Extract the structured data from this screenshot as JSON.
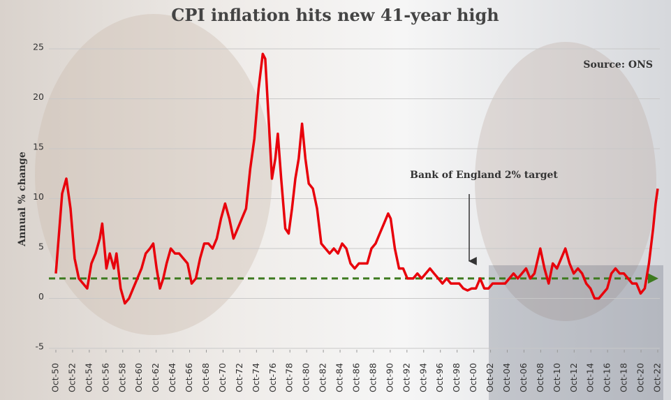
{
  "chart_data": {
    "type": "line",
    "title": "CPI inflation hits new 41-year high",
    "source": "Source: ONS",
    "y_label": "Annual % change",
    "annotation": "Bank of England 2% target",
    "target": 2,
    "target_color": "#3d7a1f",
    "color": "#e8000b",
    "grid": true,
    "xlim": [
      1950.75,
      2022.75
    ],
    "ylim": [
      -5,
      25
    ],
    "yticks": [
      -5,
      0,
      5,
      10,
      15,
      20,
      25
    ],
    "xticks": [
      {
        "value": 1950.75,
        "label": "Oct-50"
      },
      {
        "value": 1952.75,
        "label": "Oct-52"
      },
      {
        "value": 1954.75,
        "label": "Oct-54"
      },
      {
        "value": 1956.75,
        "label": "Oct-56"
      },
      {
        "value": 1958.75,
        "label": "Oct-58"
      },
      {
        "value": 1960.75,
        "label": "Oct-60"
      },
      {
        "value": 1962.75,
        "label": "Oct-62"
      },
      {
        "value": 1964.75,
        "label": "Oct-64"
      },
      {
        "value": 1966.75,
        "label": "Oct-66"
      },
      {
        "value": 1968.75,
        "label": "Oct-68"
      },
      {
        "value": 1970.75,
        "label": "Oct-70"
      },
      {
        "value": 1972.75,
        "label": "Oct-72"
      },
      {
        "value": 1974.75,
        "label": "Oct-74"
      },
      {
        "value": 1976.75,
        "label": "Oct-76"
      },
      {
        "value": 1978.75,
        "label": "Oct-78"
      },
      {
        "value": 1980.75,
        "label": "Oct-80"
      },
      {
        "value": 1982.75,
        "label": "Oct-82"
      },
      {
        "value": 1984.75,
        "label": "Oct-84"
      },
      {
        "value": 1986.75,
        "label": "Oct-86"
      },
      {
        "value": 1988.75,
        "label": "Oct-88"
      },
      {
        "value": 1990.75,
        "label": "Oct-90"
      },
      {
        "value": 1992.75,
        "label": "Oct-92"
      },
      {
        "value": 1994.75,
        "label": "Oct-94"
      },
      {
        "value": 1996.75,
        "label": "Oct-96"
      },
      {
        "value": 1998.75,
        "label": "Oct-98"
      },
      {
        "value": 2000.75,
        "label": "Oct-00"
      },
      {
        "value": 2002.75,
        "label": "Oct-02"
      },
      {
        "value": 2004.75,
        "label": "Oct-04"
      },
      {
        "value": 2006.75,
        "label": "Oct-06"
      },
      {
        "value": 2008.75,
        "label": "Oct-08"
      },
      {
        "value": 2010.75,
        "label": "Oct-10"
      },
      {
        "value": 2012.75,
        "label": "Oct-12"
      },
      {
        "value": 2014.75,
        "label": "Oct-14"
      },
      {
        "value": 2016.75,
        "label": "Oct-16"
      },
      {
        "value": 2018.75,
        "label": "Oct-18"
      },
      {
        "value": 2020.75,
        "label": "Oct-20"
      },
      {
        "value": 2022.75,
        "label": "Oct-22"
      }
    ],
    "x": [
      1950.75,
      1951.5,
      1952,
      1952.5,
      1953,
      1953.5,
      1954,
      1954.5,
      1955,
      1955.5,
      1956,
      1956.3,
      1956.8,
      1957.2,
      1957.7,
      1958,
      1958.5,
      1959,
      1959.5,
      1960,
      1960.5,
      1961,
      1961.5,
      1962,
      1962.4,
      1962.8,
      1963.2,
      1963.6,
      1964,
      1964.5,
      1965,
      1965.5,
      1966,
      1966.5,
      1967,
      1967.5,
      1968,
      1968.5,
      1969,
      1969.5,
      1970,
      1970.5,
      1971,
      1971.5,
      1972,
      1972.5,
      1973,
      1973.5,
      1974,
      1974.5,
      1975,
      1975.5,
      1975.8,
      1976.2,
      1976.6,
      1977,
      1977.3,
      1977.7,
      1978.2,
      1978.6,
      1979,
      1979.4,
      1979.8,
      1980.2,
      1980.6,
      1981,
      1981.5,
      1982,
      1982.5,
      1983,
      1983.5,
      1984,
      1984.5,
      1985,
      1985.5,
      1986,
      1986.5,
      1987,
      1987.5,
      1988,
      1988.5,
      1989,
      1989.5,
      1990,
      1990.5,
      1990.8,
      1991.3,
      1991.8,
      1992.3,
      1992.8,
      1993.5,
      1994,
      1994.5,
      1995,
      1995.5,
      1996,
      1996.5,
      1997,
      1997.5,
      1998,
      1998.5,
      1999,
      1999.5,
      2000,
      2000.5,
      2001,
      2001.5,
      2002,
      2002.5,
      2003,
      2003.5,
      2004,
      2004.5,
      2005,
      2005.5,
      2006,
      2006.5,
      2007,
      2007.5,
      2008,
      2008.7,
      2009.2,
      2009.7,
      2010.2,
      2010.7,
      2011.2,
      2011.7,
      2012.2,
      2012.7,
      2013.2,
      2013.7,
      2014.2,
      2014.7,
      2015.2,
      2015.7,
      2016.2,
      2016.7,
      2017.2,
      2017.7,
      2018.2,
      2018.7,
      2019.2,
      2019.7,
      2020.2,
      2020.7,
      2021.2,
      2021.7,
      2022.2,
      2022.5,
      2022.75
    ],
    "values": [
      2.5,
      10.5,
      12,
      9,
      4,
      2,
      1.5,
      1,
      3.5,
      4.5,
      6,
      7.5,
      3,
      4.5,
      3,
      4.5,
      1,
      -0.5,
      0,
      1,
      2,
      3,
      4.5,
      5,
      5.5,
      3,
      1,
      2,
      3.5,
      5,
      4.5,
      4.5,
      4,
      3.5,
      1.5,
      2,
      4,
      5.5,
      5.5,
      5,
      6,
      8,
      9.5,
      8,
      6,
      7,
      8,
      9,
      13,
      16,
      21,
      24.5,
      24,
      18,
      12,
      14,
      16.5,
      12,
      7,
      6.5,
      9,
      12,
      14,
      17.5,
      14,
      11.5,
      11,
      9,
      5.5,
      5,
      4.5,
      5,
      4.5,
      5.5,
      5,
      3.5,
      3,
      3.5,
      3.5,
      3.5,
      5,
      5.5,
      6.5,
      7.5,
      8.5,
      8,
      5,
      3,
      3,
      2,
      2,
      2.5,
      2,
      2.5,
      3,
      2.5,
      2,
      1.5,
      2,
      1.5,
      1.5,
      1.5,
      1,
      0.8,
      1,
      1,
      2,
      1,
      1,
      1.5,
      1.5,
      1.5,
      1.5,
      2,
      2.5,
      2,
      2.5,
      3,
      2,
      2.5,
      5,
      3,
      1.5,
      3.5,
      3,
      4,
      5,
      3.5,
      2.5,
      3,
      2.5,
      1.5,
      1,
      0,
      0,
      0.5,
      1,
      2.5,
      3,
      2.5,
      2.5,
      2,
      1.5,
      1.5,
      0.5,
      1,
      3.5,
      7,
      9.5,
      11
    ]
  }
}
